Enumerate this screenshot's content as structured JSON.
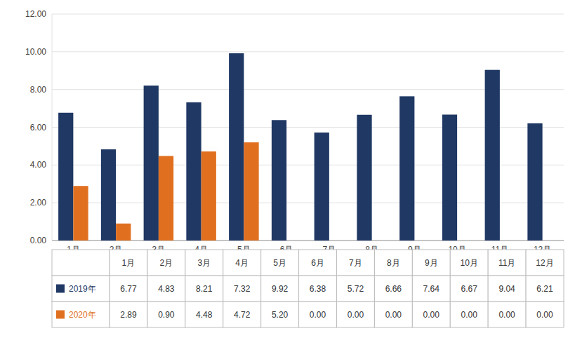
{
  "chart_data": {
    "type": "bar",
    "categories": [
      "1月",
      "2月",
      "3月",
      "4月",
      "5月",
      "6月",
      "7月",
      "8月",
      "9月",
      "10月",
      "11月",
      "12月"
    ],
    "series": [
      {
        "name": "2019年",
        "color": "#1F3864",
        "values": [
          6.77,
          4.83,
          8.21,
          7.32,
          9.92,
          6.38,
          5.72,
          6.66,
          7.64,
          6.67,
          9.04,
          6.21
        ],
        "value_labels": [
          "6.77",
          "4.83",
          "8.21",
          "7.32",
          "9.92",
          "6.38",
          "5.72",
          "6.66",
          "7.64",
          "6.67",
          "9.04",
          "6.21"
        ]
      },
      {
        "name": "2020年",
        "color": "#E07020",
        "values": [
          2.89,
          0.9,
          4.48,
          4.72,
          5.2,
          0.0,
          0.0,
          0.0,
          0.0,
          0.0,
          0.0,
          0.0
        ],
        "value_labels": [
          "2.89",
          "0.90",
          "4.48",
          "4.72",
          "5.20",
          "0.00",
          "0.00",
          "0.00",
          "0.00",
          "0.00",
          "0.00",
          "0.00"
        ]
      }
    ],
    "ylim": [
      0,
      12.0
    ],
    "yticks": [
      {
        "value": 0,
        "label": "0.00"
      },
      {
        "value": 2,
        "label": "2.00"
      },
      {
        "value": 4,
        "label": "4.00"
      },
      {
        "value": 6,
        "label": "6.00"
      },
      {
        "value": 8,
        "label": "8.00"
      },
      {
        "value": 10,
        "label": "10.00"
      },
      {
        "value": 12,
        "label": "12.00"
      }
    ],
    "grid": true
  }
}
